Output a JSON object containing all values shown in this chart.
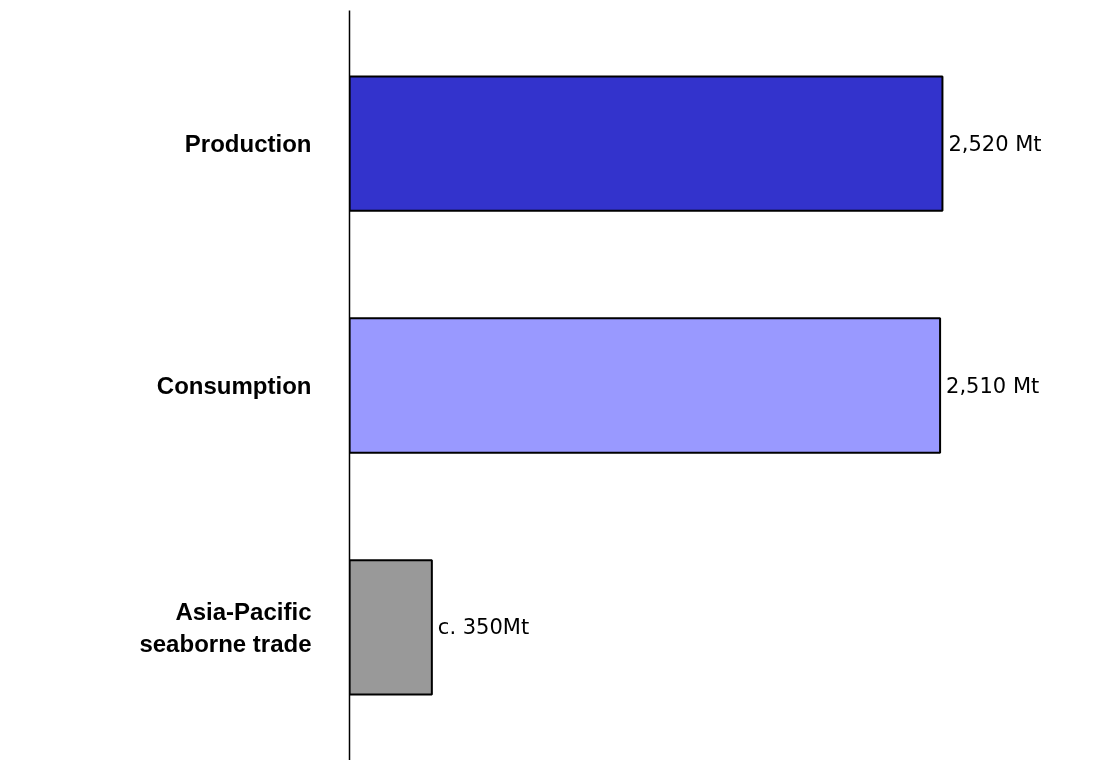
{
  "chart_data": {
    "type": "bar",
    "orientation": "horizontal",
    "categories": [
      "Production",
      "Consumption",
      "Asia-Pacific\nseaborne trade"
    ],
    "values": [
      2520,
      2510,
      350
    ],
    "colors": [
      "#3333cc",
      "#9999ff",
      "#999999"
    ],
    "value_labels": [
      "2,520 Mt",
      "2,510 Mt",
      "c. 350Mt"
    ]
  }
}
